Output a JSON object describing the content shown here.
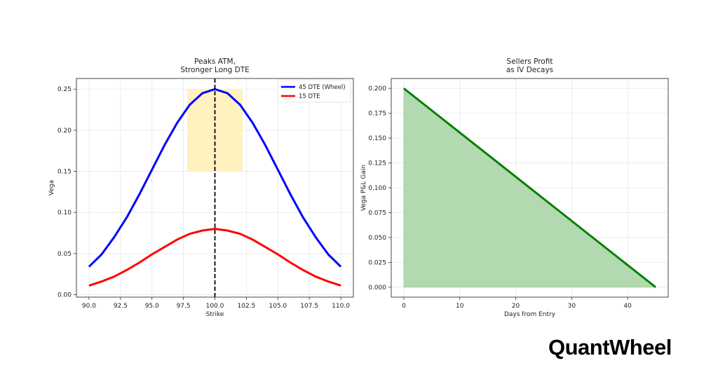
{
  "logo_text": "QuantWheel",
  "chart_data": [
    {
      "type": "line",
      "title_lines": [
        "Peaks ATM,",
        "Stronger Long DTE"
      ],
      "xlabel": "Strike",
      "ylabel": "Vega",
      "xlim": [
        89,
        111
      ],
      "ylim": [
        -0.003,
        0.263
      ],
      "xticks": [
        90.0,
        92.5,
        95.0,
        97.5,
        100.0,
        102.5,
        105.0,
        107.5,
        110.0
      ],
      "xtick_labels": [
        "90.0",
        "92.5",
        "95.0",
        "97.5",
        "100.0",
        "102.5",
        "105.0",
        "107.5",
        "110.0"
      ],
      "yticks": [
        0,
        0.05,
        0.1,
        0.15,
        0.2,
        0.25
      ],
      "ytick_labels": [
        "0.00",
        "0.05",
        "0.10",
        "0.15",
        "0.20",
        "0.25"
      ],
      "grid": true,
      "legend_position": "top-right",
      "x": [
        90,
        91,
        92,
        93,
        94,
        95,
        96,
        97,
        98,
        99,
        100,
        101,
        102,
        103,
        104,
        105,
        106,
        107,
        108,
        109,
        110
      ],
      "series": [
        {
          "name": "45 DTE (Wheel)",
          "color": "#0000ff",
          "values": [
            0.034,
            0.049,
            0.07,
            0.094,
            0.122,
            0.152,
            0.182,
            0.209,
            0.231,
            0.245,
            0.25,
            0.245,
            0.231,
            0.209,
            0.182,
            0.152,
            0.122,
            0.094,
            0.07,
            0.049,
            0.034
          ]
        },
        {
          "name": "15 DTE",
          "color": "#ff0000",
          "values": [
            0.011,
            0.016,
            0.022,
            0.03,
            0.039,
            0.049,
            0.058,
            0.067,
            0.074,
            0.078,
            0.08,
            0.078,
            0.074,
            0.067,
            0.058,
            0.049,
            0.039,
            0.03,
            0.022,
            0.016,
            0.011
          ]
        }
      ],
      "vline": {
        "x": 100,
        "color": "#000000",
        "style": "dashed"
      },
      "highlight": {
        "x": [
          97.8,
          102.2
        ],
        "y": [
          0.15,
          0.25
        ],
        "color": "#fff2c0"
      }
    },
    {
      "type": "area",
      "title_lines": [
        "Sellers Profit",
        "as IV Decays"
      ],
      "xlabel": "Days from Entry",
      "ylabel": "Vega P&L Gain",
      "xlim": [
        -2.25,
        47.25
      ],
      "ylim": [
        -0.01,
        0.21
      ],
      "xticks": [
        0,
        10,
        20,
        30,
        40
      ],
      "xtick_labels": [
        "0",
        "10",
        "20",
        "30",
        "40"
      ],
      "yticks": [
        0,
        0.025,
        0.05,
        0.075,
        0.1,
        0.125,
        0.15,
        0.175,
        0.2
      ],
      "ytick_labels": [
        "0.000",
        "0.025",
        "0.050",
        "0.075",
        "0.100",
        "0.125",
        "0.150",
        "0.175",
        "0.200"
      ],
      "grid": true,
      "x": [
        0,
        45
      ],
      "series": [
        {
          "color": "#008000",
          "fill": "#b3d9b0",
          "values": [
            0.2,
            0.0
          ]
        }
      ]
    }
  ]
}
